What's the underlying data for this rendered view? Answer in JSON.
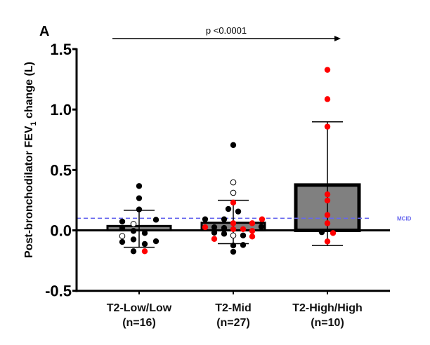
{
  "chart_data": {
    "type": "bar",
    "panel_label": "A",
    "title": "",
    "xlabel": "",
    "ylabel": "Post-bronchodilator FEV",
    "ylabel_subscript": "1",
    "ylabel_suffix": " change (L)",
    "ylim": [
      -0.5,
      1.5
    ],
    "yticks": [
      -0.5,
      0.0,
      0.5,
      1.0,
      1.5
    ],
    "ytick_labels": [
      "-0.5",
      "0.0",
      "0.5",
      "1.0",
      "1.5"
    ],
    "categories": [
      {
        "name": "T2-Low/Low",
        "n_label": "(n=16)"
      },
      {
        "name": "T2-Mid",
        "n_label": "(n=27)"
      },
      {
        "name": "T2-High/High",
        "n_label": "(n=10)"
      }
    ],
    "bar_values": [
      0.036,
      0.063,
      0.375
    ],
    "error_bars": [
      {
        "upper": 0.166,
        "lower": -0.14
      },
      {
        "upper": 0.249,
        "lower": -0.11
      },
      {
        "upper": 0.898,
        "lower": -0.125
      }
    ],
    "points": [
      [
        {
          "v": 0.367,
          "dx": 0,
          "c": "black"
        },
        {
          "v": 0.266,
          "dx": 0,
          "c": "black"
        },
        {
          "v": 0.173,
          "dx": 0,
          "c": "black"
        },
        {
          "v": 0.088,
          "dx": 24,
          "c": "black"
        },
        {
          "v": 0.073,
          "dx": -24,
          "c": "black"
        },
        {
          "v": 0.053,
          "dx": -8,
          "c": "open"
        },
        {
          "v": 0.02,
          "dx": -24,
          "c": "black"
        },
        {
          "v": -0.005,
          "dx": -8,
          "c": "black"
        },
        {
          "v": -0.022,
          "dx": 8,
          "c": "black"
        },
        {
          "v": -0.047,
          "dx": -24,
          "c": "open"
        },
        {
          "v": -0.075,
          "dx": -8,
          "c": "black"
        },
        {
          "v": -0.09,
          "dx": 24,
          "c": "black"
        },
        {
          "v": -0.096,
          "dx": -24,
          "c": "black"
        },
        {
          "v": -0.113,
          "dx": 8,
          "c": "black"
        },
        {
          "v": -0.173,
          "dx": -8,
          "c": "black"
        },
        {
          "v": -0.173,
          "dx": 8,
          "c": "red"
        }
      ],
      [
        {
          "v": 0.706,
          "dx": 0,
          "c": "black"
        },
        {
          "v": 0.397,
          "dx": 0,
          "c": "open"
        },
        {
          "v": 0.311,
          "dx": 0,
          "c": "open"
        },
        {
          "v": 0.23,
          "dx": 0,
          "c": "red"
        },
        {
          "v": 0.177,
          "dx": -7,
          "c": "black"
        },
        {
          "v": 0.156,
          "dx": 7,
          "c": "black"
        },
        {
          "v": 0.092,
          "dx": -40,
          "c": "black"
        },
        {
          "v": 0.092,
          "dx": -13,
          "c": "black"
        },
        {
          "v": 0.092,
          "dx": 41,
          "c": "red"
        },
        {
          "v": 0.059,
          "dx": 0,
          "c": "red"
        },
        {
          "v": 0.059,
          "dx": 27,
          "c": "red"
        },
        {
          "v": 0.03,
          "dx": 40,
          "c": "black"
        },
        {
          "v": 0.026,
          "dx": -40,
          "c": "red"
        },
        {
          "v": 0.026,
          "dx": -27,
          "c": "black"
        },
        {
          "v": 0.02,
          "dx": -13,
          "c": "black"
        },
        {
          "v": 0.01,
          "dx": 0,
          "c": "red"
        },
        {
          "v": 0.01,
          "dx": 14,
          "c": "red"
        },
        {
          "v": -0.005,
          "dx": 27,
          "c": "red"
        },
        {
          "v": -0.019,
          "dx": -27,
          "c": "black"
        },
        {
          "v": -0.028,
          "dx": -13,
          "c": "black"
        },
        {
          "v": -0.042,
          "dx": 0,
          "c": "open"
        },
        {
          "v": -0.042,
          "dx": 14,
          "c": "black"
        },
        {
          "v": -0.051,
          "dx": 27,
          "c": "red"
        },
        {
          "v": -0.071,
          "dx": -27,
          "c": "red"
        },
        {
          "v": -0.121,
          "dx": 14,
          "c": "black"
        },
        {
          "v": -0.125,
          "dx": 0,
          "c": "black"
        },
        {
          "v": -0.177,
          "dx": 0,
          "c": "black"
        }
      ],
      [
        {
          "v": 1.328,
          "dx": 0,
          "c": "red"
        },
        {
          "v": 1.086,
          "dx": 0,
          "c": "red"
        },
        {
          "v": 0.858,
          "dx": 0,
          "c": "red"
        },
        {
          "v": 0.298,
          "dx": 0,
          "c": "red"
        },
        {
          "v": 0.247,
          "dx": 0,
          "c": "red"
        },
        {
          "v": 0.127,
          "dx": 0,
          "c": "red"
        },
        {
          "v": 0.059,
          "dx": 0,
          "c": "red"
        },
        {
          "v": -0.015,
          "dx": -8,
          "c": "black"
        },
        {
          "v": -0.022,
          "dx": 8,
          "c": "red"
        },
        {
          "v": -0.092,
          "dx": 0,
          "c": "red"
        }
      ]
    ],
    "reference_line": {
      "value": 0.1,
      "label": "MCID",
      "style": "dashed",
      "color": "#6666ee"
    },
    "annotation": {
      "text": "p <0.0001",
      "from_category": 0,
      "to_category": 2,
      "style": "arrow"
    },
    "colors": {
      "bar": "#808080",
      "red_point": "#ff0000",
      "black_point": "#000000",
      "open_point": "#ffffff"
    },
    "grid": false,
    "legend": "none"
  }
}
